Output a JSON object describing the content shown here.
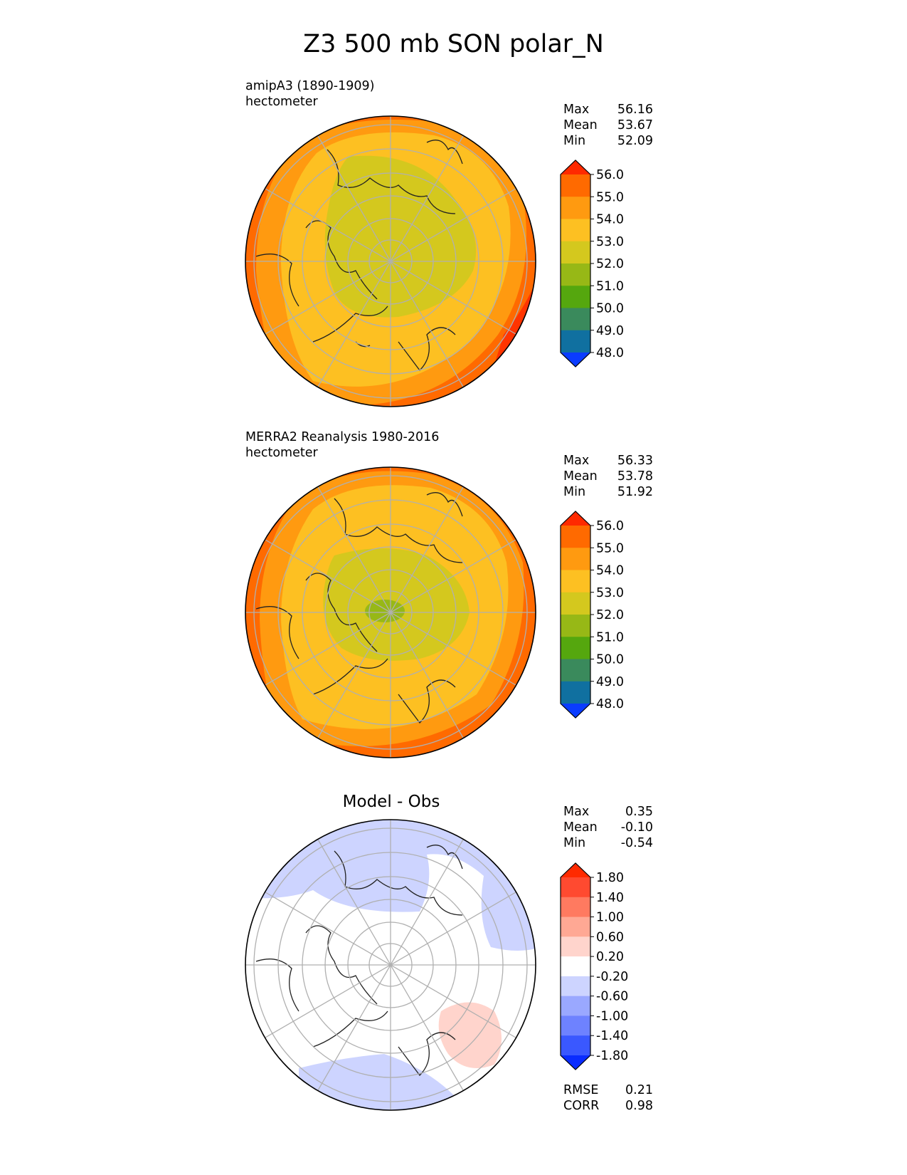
{
  "figure": {
    "title": "Z3 500 mb SON polar_N"
  },
  "panels": [
    {
      "name": "model",
      "label_line1": "amipA3 (1890-1909)",
      "label_line2": "hectometer",
      "stats": [
        {
          "label": "Max",
          "value": "56.16"
        },
        {
          "label": "Mean",
          "value": "53.67"
        },
        {
          "label": "Min",
          "value": "52.09"
        }
      ],
      "colorbar": {
        "ticks": [
          "56.0",
          "55.0",
          "54.0",
          "53.0",
          "52.0",
          "51.0",
          "50.0",
          "49.0",
          "48.0"
        ],
        "colors": [
          "#ff2a00",
          "#ff6a00",
          "#ff9a10",
          "#fdc022",
          "#d4c81e",
          "#97b816",
          "#55a70e",
          "#3a8a5c",
          "#1070a0",
          "#0a3cff"
        ]
      }
    },
    {
      "name": "obs",
      "label_line1": "MERRA2 Reanalysis 1980-2016",
      "label_line2": "hectometer",
      "stats": [
        {
          "label": "Max",
          "value": "56.33"
        },
        {
          "label": "Mean",
          "value": "53.78"
        },
        {
          "label": "Min",
          "value": "51.92"
        }
      ],
      "colorbar": {
        "ticks": [
          "56.0",
          "55.0",
          "54.0",
          "53.0",
          "52.0",
          "51.0",
          "50.0",
          "49.0",
          "48.0"
        ],
        "colors": [
          "#ff2a00",
          "#ff6a00",
          "#ff9a10",
          "#fdc022",
          "#d4c81e",
          "#97b816",
          "#55a70e",
          "#3a8a5c",
          "#1070a0",
          "#0a3cff"
        ]
      }
    },
    {
      "name": "diff",
      "title": "Model - Obs",
      "stats": [
        {
          "label": "Max",
          "value": "0.35"
        },
        {
          "label": "Mean",
          "value": "-0.10"
        },
        {
          "label": "Min",
          "value": "-0.54"
        }
      ],
      "colorbar": {
        "ticks": [
          "1.80",
          "1.40",
          "1.00",
          "0.60",
          "0.20",
          "-0.20",
          "-0.60",
          "-1.00",
          "-1.40",
          "-1.80"
        ],
        "colors": [
          "#ff2a00",
          "#ff4a30",
          "#ff7a60",
          "#ffa894",
          "#ffd4cc",
          "#ffffff",
          "#cdd4ff",
          "#9aa8ff",
          "#6e82ff",
          "#3a58ff",
          "#0a2cff"
        ]
      },
      "metrics": [
        {
          "label": "RMSE",
          "value": "0.21"
        },
        {
          "label": "CORR",
          "value": "0.98"
        }
      ]
    }
  ]
}
